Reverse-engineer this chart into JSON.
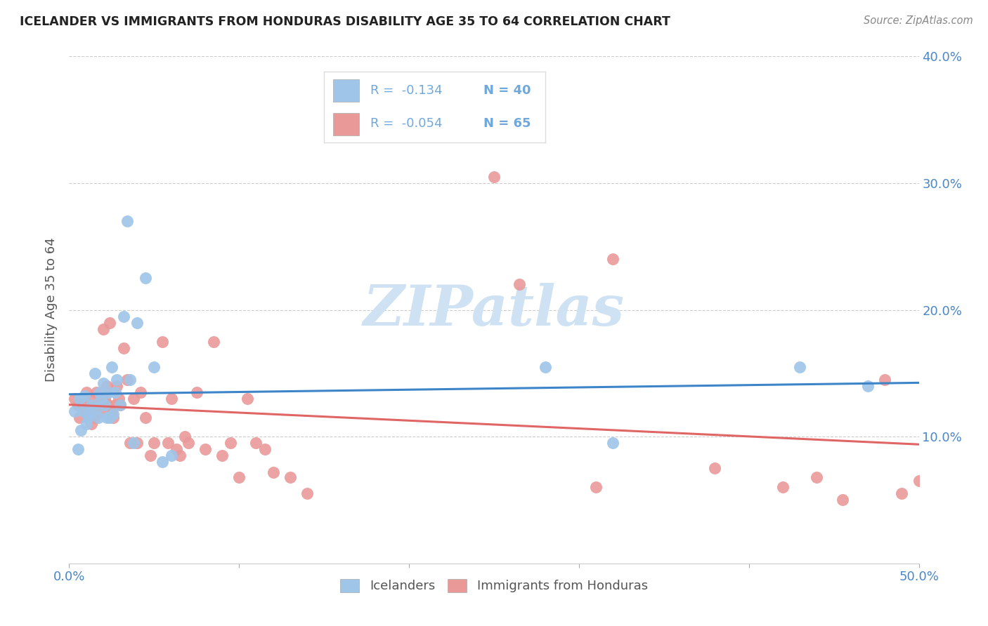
{
  "title": "ICELANDER VS IMMIGRANTS FROM HONDURAS DISABILITY AGE 35 TO 64 CORRELATION CHART",
  "source": "Source: ZipAtlas.com",
  "ylabel": "Disability Age 35 to 64",
  "xlim": [
    0.0,
    0.5
  ],
  "ylim": [
    0.0,
    0.4
  ],
  "xticks": [
    0.0,
    0.1,
    0.2,
    0.3,
    0.4,
    0.5
  ],
  "xtick_labels": [
    "0.0%",
    "",
    "",
    "",
    "",
    "50.0%"
  ],
  "yticks": [
    0.0,
    0.1,
    0.2,
    0.3,
    0.4
  ],
  "ytick_labels_right": [
    "",
    "10.0%",
    "20.0%",
    "30.0%",
    "40.0%"
  ],
  "blue_color": "#9fc5e8",
  "pink_color": "#ea9999",
  "blue_line_color": "#3d85c8",
  "pink_line_color": "#e06666",
  "legend_text_color": "#6fa8dc",
  "watermark_color": "#cfe2f3",
  "blue_scatter_x": [
    0.003,
    0.005,
    0.006,
    0.007,
    0.008,
    0.009,
    0.01,
    0.011,
    0.012,
    0.013,
    0.015,
    0.016,
    0.017,
    0.018,
    0.019,
    0.02,
    0.021,
    0.022,
    0.023,
    0.024,
    0.025,
    0.026,
    0.027,
    0.028,
    0.03,
    0.032,
    0.034,
    0.036,
    0.038,
    0.04,
    0.045,
    0.05,
    0.055,
    0.06,
    0.28,
    0.32,
    0.43,
    0.47
  ],
  "blue_scatter_y": [
    0.12,
    0.09,
    0.13,
    0.105,
    0.12,
    0.132,
    0.11,
    0.115,
    0.118,
    0.125,
    0.15,
    0.122,
    0.115,
    0.135,
    0.13,
    0.142,
    0.125,
    0.115,
    0.135,
    0.115,
    0.155,
    0.118,
    0.135,
    0.145,
    0.125,
    0.195,
    0.27,
    0.145,
    0.095,
    0.19,
    0.225,
    0.155,
    0.08,
    0.085,
    0.155,
    0.095,
    0.155,
    0.14
  ],
  "pink_scatter_x": [
    0.003,
    0.005,
    0.006,
    0.008,
    0.009,
    0.01,
    0.011,
    0.012,
    0.013,
    0.014,
    0.015,
    0.016,
    0.017,
    0.018,
    0.019,
    0.02,
    0.021,
    0.022,
    0.023,
    0.024,
    0.025,
    0.026,
    0.027,
    0.028,
    0.029,
    0.03,
    0.032,
    0.034,
    0.036,
    0.038,
    0.04,
    0.042,
    0.045,
    0.048,
    0.05,
    0.055,
    0.058,
    0.06,
    0.063,
    0.065,
    0.068,
    0.07,
    0.075,
    0.08,
    0.085,
    0.09,
    0.095,
    0.1,
    0.105,
    0.11,
    0.115,
    0.12,
    0.13,
    0.14,
    0.25,
    0.265,
    0.31,
    0.32,
    0.38,
    0.42,
    0.44,
    0.455,
    0.48,
    0.49,
    0.5
  ],
  "pink_scatter_y": [
    0.13,
    0.125,
    0.115,
    0.125,
    0.12,
    0.135,
    0.115,
    0.13,
    0.11,
    0.12,
    0.115,
    0.135,
    0.125,
    0.12,
    0.13,
    0.185,
    0.13,
    0.14,
    0.125,
    0.19,
    0.12,
    0.115,
    0.125,
    0.14,
    0.13,
    0.125,
    0.17,
    0.145,
    0.095,
    0.13,
    0.095,
    0.135,
    0.115,
    0.085,
    0.095,
    0.175,
    0.095,
    0.13,
    0.09,
    0.085,
    0.1,
    0.095,
    0.135,
    0.09,
    0.175,
    0.085,
    0.095,
    0.068,
    0.13,
    0.095,
    0.09,
    0.072,
    0.068,
    0.055,
    0.305,
    0.22,
    0.06,
    0.24,
    0.075,
    0.06,
    0.068,
    0.05,
    0.145,
    0.055,
    0.065
  ]
}
